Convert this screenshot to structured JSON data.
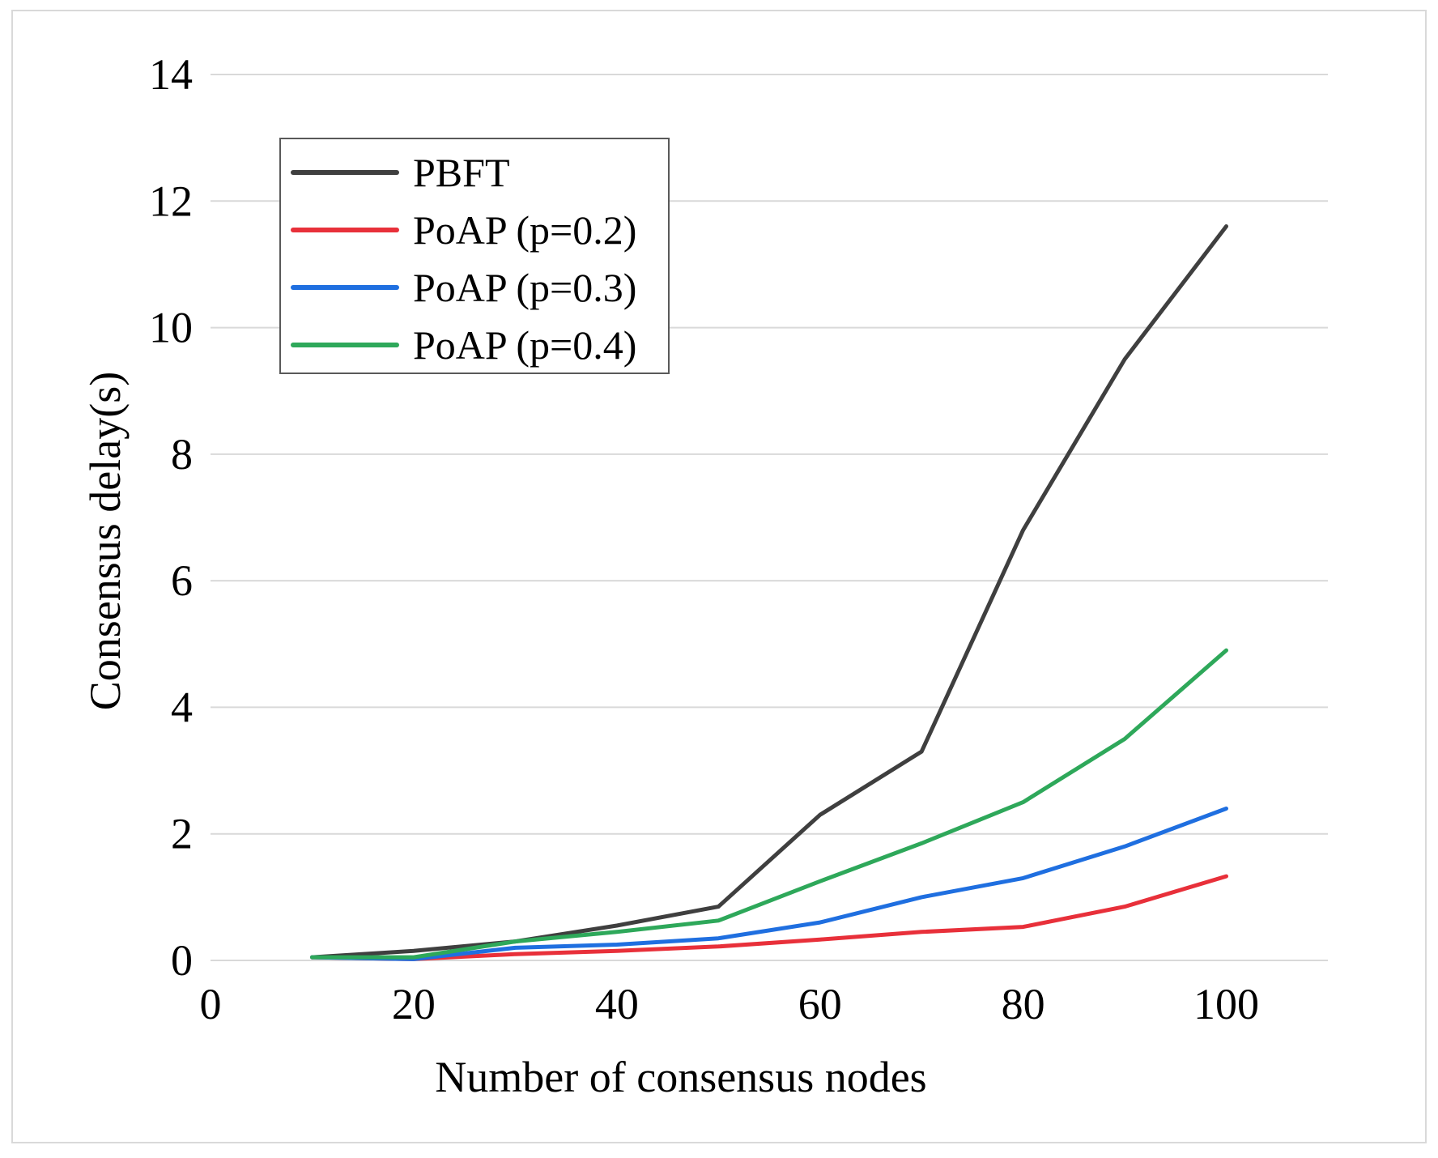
{
  "chart_data": {
    "type": "line",
    "title": "",
    "xlabel": "Number of consensus nodes",
    "ylabel": "Consensus delay(s)",
    "xlim": [
      0,
      110
    ],
    "ylim": [
      0,
      14
    ],
    "x_ticks": [
      0,
      20,
      40,
      60,
      80,
      100
    ],
    "y_ticks": [
      0,
      2,
      4,
      6,
      8,
      10,
      12,
      14
    ],
    "grid": "horizontal",
    "legend_position": "top-left",
    "x": [
      10,
      20,
      30,
      40,
      50,
      60,
      70,
      80,
      90,
      100
    ],
    "series": [
      {
        "name": "PBFT",
        "color": "#3f3f3f",
        "values": [
          0.05,
          0.15,
          0.3,
          0.55,
          0.85,
          2.3,
          3.3,
          6.8,
          9.5,
          11.6
        ]
      },
      {
        "name": "PoAP (p=0.2)",
        "color": "#e8303a",
        "values": [
          0.05,
          0.02,
          0.1,
          0.15,
          0.22,
          0.33,
          0.45,
          0.53,
          0.85,
          1.33
        ]
      },
      {
        "name": "PoAP (p=0.3)",
        "color": "#1f6fe0",
        "values": [
          0.05,
          0.02,
          0.2,
          0.25,
          0.35,
          0.6,
          1.0,
          1.3,
          1.8,
          2.4
        ]
      },
      {
        "name": "PoAP (p=0.4)",
        "color": "#2ea85a",
        "values": [
          0.05,
          0.05,
          0.3,
          0.45,
          0.63,
          1.25,
          1.85,
          2.5,
          3.5,
          4.9
        ]
      }
    ]
  }
}
